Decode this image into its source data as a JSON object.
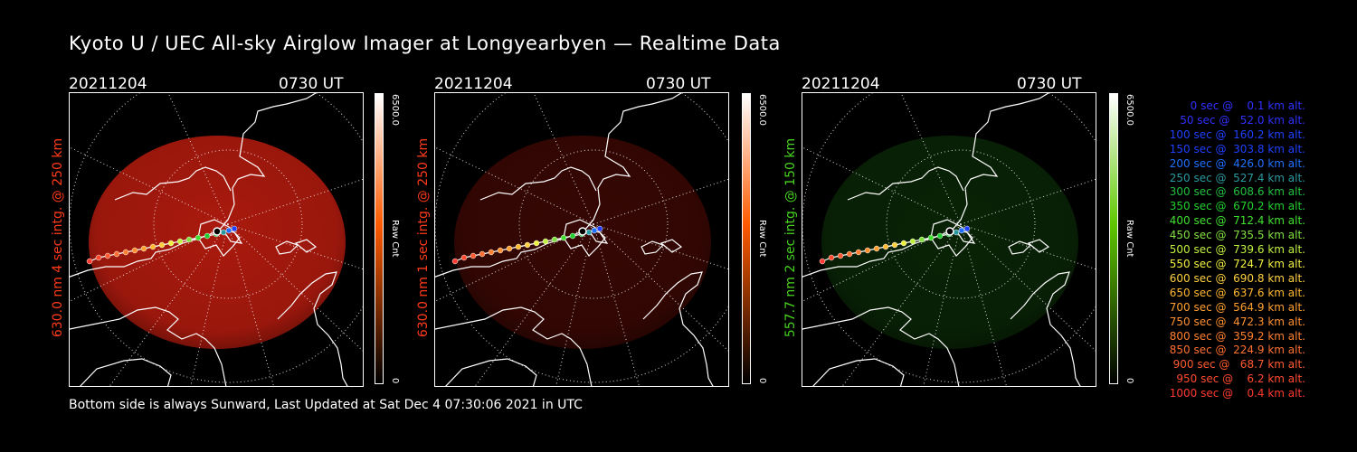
{
  "title": "Kyoto U / UEC All-sky Airglow Imager at Longyearbyen — Realtime Data",
  "footer": "Bottom side is always Sunward, Last Updated at Sat Dec  4 07:30:06 2021 in UTC",
  "panels": [
    {
      "date": "20211204",
      "time": "0730 UT",
      "label": "630.0 nm 4 sec intg. @ 250 km",
      "label_color": "#ff3a1a",
      "glow": "#c81e10",
      "glow_opacity": 0.85,
      "cbar_max": "6500.0",
      "cbar_unit": "Raw Cnt",
      "cbar_min": "0",
      "cbar_color": "#ff5a00"
    },
    {
      "date": "20211204",
      "time": "0730 UT",
      "label": "630.0 nm 1 sec intg. @ 250 km",
      "label_color": "#ff3a1a",
      "glow": "#5a0c06",
      "glow_opacity": 0.6,
      "cbar_max": "6500.0",
      "cbar_unit": "Raw Cnt",
      "cbar_min": "0",
      "cbar_color": "#ff5a00"
    },
    {
      "date": "20211204",
      "time": "0730 UT",
      "label": "557.7 nm 2 sec intg. @ 150 km",
      "label_color": "#46d21e",
      "glow": "#0f3a0a",
      "glow_opacity": 0.6,
      "cbar_max": "6500.0",
      "cbar_unit": "Raw Cnt",
      "cbar_min": "0",
      "cbar_color": "#5fc800"
    }
  ],
  "legend": [
    {
      "text": "   0 sec @    0.1 km alt.",
      "color": "#3030ff"
    },
    {
      "text": "  50 sec @   52.0 km alt.",
      "color": "#3030ff"
    },
    {
      "text": " 100 sec @  160.2 km alt.",
      "color": "#2040ff"
    },
    {
      "text": " 150 sec @  303.8 km alt.",
      "color": "#2040ff"
    },
    {
      "text": " 200 sec @  426.0 km alt.",
      "color": "#2070ff"
    },
    {
      "text": " 250 sec @  527.4 km alt.",
      "color": "#2a9aa0"
    },
    {
      "text": " 300 sec @  608.6 km alt.",
      "color": "#22c040"
    },
    {
      "text": " 350 sec @  670.2 km alt.",
      "color": "#22d030"
    },
    {
      "text": " 400 sec @  712.4 km alt.",
      "color": "#40e030"
    },
    {
      "text": " 450 sec @  735.5 km alt.",
      "color": "#80e040"
    },
    {
      "text": " 500 sec @  739.6 km alt.",
      "color": "#c0f040"
    },
    {
      "text": " 550 sec @  724.7 km alt.",
      "color": "#f0f040"
    },
    {
      "text": " 600 sec @  690.8 km alt.",
      "color": "#ffd040"
    },
    {
      "text": " 650 sec @  637.6 km alt.",
      "color": "#ffb830"
    },
    {
      "text": " 700 sec @  564.9 km alt.",
      "color": "#ffa030"
    },
    {
      "text": " 750 sec @  472.3 km alt.",
      "color": "#ff9030"
    },
    {
      "text": " 800 sec @  359.2 km alt.",
      "color": "#ff8030"
    },
    {
      "text": " 850 sec @  224.9 km alt.",
      "color": "#ff7030"
    },
    {
      "text": " 900 sec @   68.7 km alt.",
      "color": "#ff5a30"
    },
    {
      "text": " 950 sec @    6.2 km alt.",
      "color": "#ff4a30"
    },
    {
      "text": "1000 sec @    0.4 km alt.",
      "color": "#ff3a30"
    }
  ]
}
